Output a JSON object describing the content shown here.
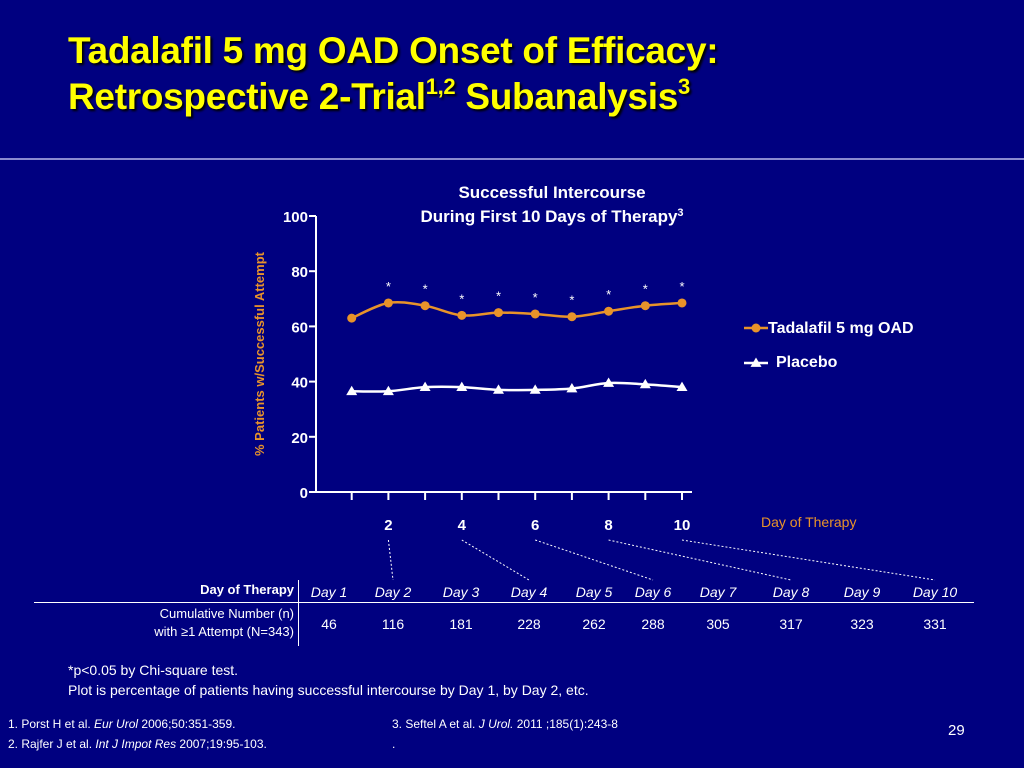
{
  "slide": {
    "title_line1": "Tadalafil 5 mg OAD Onset of Efficacy:",
    "title_line2_main": "Retrospective 2-Trial",
    "title_line2_sup1": "1,2",
    "title_line2_mid": " Subanalysis",
    "title_line2_sup2": "3",
    "page_number": "29"
  },
  "colors": {
    "background": "#000080",
    "title": "#ffff00",
    "tadalafil": "#e8932a",
    "placebo": "#ffffff",
    "axis_label": "#e8932a"
  },
  "chart_data": {
    "type": "line",
    "title_line1": "Successful Intercourse",
    "title_line2": "During First 10 Days of Therapy",
    "title_sup": "3",
    "ylabel": "%  Patients  w/Successful Attempt",
    "xlabel": "Day of Therapy",
    "ylim": [
      0,
      100
    ],
    "yticks": [
      0,
      20,
      40,
      60,
      80,
      100
    ],
    "xlim": [
      0,
      10
    ],
    "xticks": [
      2,
      4,
      6,
      8,
      10
    ],
    "x": [
      1,
      2,
      3,
      4,
      5,
      6,
      7,
      8,
      9,
      10
    ],
    "legend_position": "right",
    "series": [
      {
        "name": "Tadalafil  5 mg OAD",
        "marker": "circle",
        "values": [
          63,
          68.5,
          67.5,
          64,
          65,
          64.5,
          63.5,
          65.5,
          67.5,
          68.5
        ]
      },
      {
        "name": "Placebo",
        "marker": "triangle",
        "values": [
          36.5,
          36.5,
          38,
          38,
          37,
          37,
          37.5,
          39.5,
          39,
          38
        ]
      }
    ],
    "significance_marker": "*",
    "significant_days": [
      2,
      3,
      4,
      5,
      6,
      7,
      8,
      9,
      10
    ]
  },
  "table": {
    "row1_header": "Day of Therapy",
    "row2_header_line1": "Cumulative Number (n)",
    "row2_header_line2": "with ≥1 Attempt (N=343)",
    "days": [
      "Day 1",
      "Day 2",
      "Day 3",
      "Day 4",
      "Day 5",
      "Day 6",
      "Day 7",
      "Day 8",
      "Day 9",
      "Day 10"
    ],
    "counts": [
      "46",
      "116",
      "181",
      "228",
      "262",
      "288",
      "305",
      "317",
      "323",
      "331"
    ]
  },
  "footnotes": {
    "line1": "*p<0.05 by Chi-square test.",
    "line2": "Plot is percentage of patients having successful intercourse by Day 1, by Day 2, etc."
  },
  "references": {
    "ref1_prefix": "1. Porst H et al. ",
    "ref1_journal": "Eur Urol",
    "ref1_suffix": " 2006;50:351-359.",
    "ref2_prefix": "2. Rajfer J et al. ",
    "ref2_journal": "Int J Impot Res",
    "ref2_suffix": " 2007;19:95-103.",
    "ref3_prefix": "3. Seftel A et al. ",
    "ref3_journal": "J Urol.",
    "ref3_suffix": " 2011 ;185(1):243-8",
    "ref3_line2": "."
  }
}
